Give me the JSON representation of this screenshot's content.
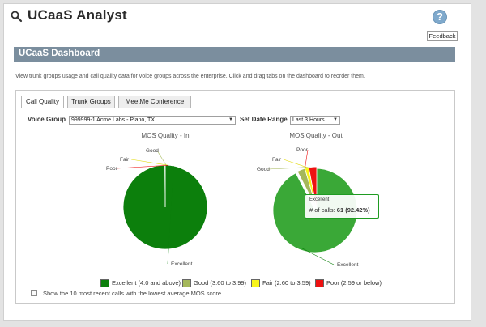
{
  "app": {
    "title": "UCaaS Analyst",
    "help_label": "?"
  },
  "feedback_label": "Feedback",
  "dashboard": {
    "title": "UCaaS Dashboard",
    "description": "View trunk groups usage and call quality data for voice groups across the enterprise. Click and drag tabs on the dashboard to reorder them."
  },
  "tabs": [
    {
      "label": "Call Quality",
      "active": true
    },
    {
      "label": "Trunk Groups",
      "active": false
    },
    {
      "label": "MeetMe Conference",
      "active": false
    }
  ],
  "filters": {
    "voice_group_label": "Voice Group",
    "voice_group_value": "999999-1 Acme Labs - Plano, TX",
    "date_range_label": "Set Date Range",
    "date_range_value": "Last 3 Hours"
  },
  "colors": {
    "excellent": "#0c7f0c",
    "good": "#a5b85a",
    "fair": "#f8f41a",
    "poor": "#ee1111",
    "highlight": "#3aa837"
  },
  "chart_data": [
    {
      "type": "pie",
      "title": "MOS Quality - In",
      "categories": [
        "Excellent",
        "Good",
        "Fair",
        "Poor"
      ],
      "values": [
        99.9,
        0.1,
        0,
        0
      ]
    },
    {
      "type": "pie",
      "title": "MOS Quality - Out",
      "categories": [
        "Excellent",
        "Good",
        "Fair",
        "Poor"
      ],
      "values": [
        92.42,
        3.03,
        1.52,
        3.03
      ],
      "tooltip": {
        "category": "Excellent",
        "label": "# of calls:",
        "value": "61 (92.42%)"
      }
    }
  ],
  "legend": [
    {
      "label": "Excellent (4.0 and above)",
      "color": "#0c7f0c"
    },
    {
      "label": "Good (3.60 to 3.99)",
      "color": "#a5b85a"
    },
    {
      "label": "Fair (2.60 to 3.59)",
      "color": "#f8f41a"
    },
    {
      "label": "Poor (2.59 or below)",
      "color": "#ee1111"
    }
  ],
  "checkbox": {
    "label": "Show the 10 most recent calls with the lowest average MOS score.",
    "checked": false
  }
}
